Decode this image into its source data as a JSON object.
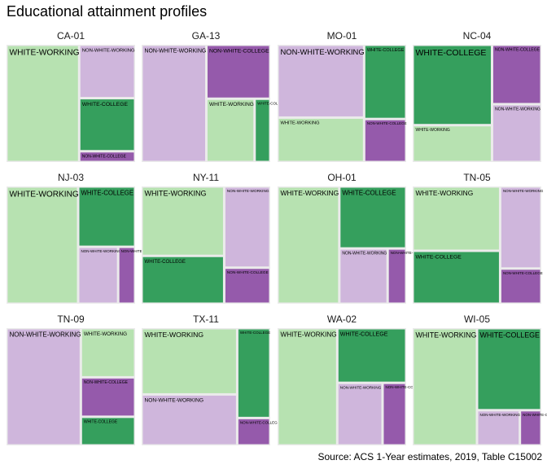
{
  "title": "Educational attainment profiles",
  "caption": "Source: ACS 1-Year estimates, 2019, Table C15002",
  "colors": {
    "WHITE-WORKING": "#b7e2b1",
    "NON-WHITE-WORKING": "#cfb6dc",
    "WHITE-COLLEGE": "#359f5d",
    "NON-WHITE-COLLEGE": "#955aab"
  },
  "chart_data": {
    "type": "treemap",
    "facets": [
      {
        "name": "CA-01",
        "cells": [
          {
            "category": "WHITE-WORKING",
            "label": "WHITE-WORKING",
            "share": 0.565
          },
          {
            "category": "NON-WHITE-WORKING",
            "label": "NON-WHITE-WORKING",
            "share": 0.198
          },
          {
            "category": "WHITE-COLLEGE",
            "label": "WHITE-COLLEGE",
            "share": 0.197
          },
          {
            "category": "NON-WHITE-COLLEGE",
            "label": "NON-WHITE-COLLEGE",
            "share": 0.04
          }
        ]
      },
      {
        "name": "GA-13",
        "cells": [
          {
            "category": "NON-WHITE-WORKING",
            "label": "NON-WHITE-WORKING",
            "share": 0.482
          },
          {
            "category": "NON-WHITE-COLLEGE",
            "label": "NON-WHITE-COLLEGE",
            "share": 0.219
          },
          {
            "category": "WHITE-WORKING",
            "label": "WHITE-WORKING",
            "share": 0.194
          },
          {
            "category": "WHITE-COLLEGE",
            "label": "WHITE-COLLEGE",
            "share": 0.063
          }
        ]
      },
      {
        "name": "MO-01",
        "cells": [
          {
            "category": "NON-WHITE-WORKING",
            "label": "NON-WHITE-WORKING",
            "share": 0.418
          },
          {
            "category": "WHITE-WORKING",
            "label": "WHITE-WORKING",
            "share": 0.255
          },
          {
            "category": "WHITE-COLLEGE",
            "label": "WHITE-COLLEGE",
            "share": 0.207
          },
          {
            "category": "NON-WHITE-COLLEGE",
            "label": "NON-WHITE-COLLEGE",
            "share": 0.12
          }
        ]
      },
      {
        "name": "NC-04",
        "cells": [
          {
            "category": "WHITE-COLLEGE",
            "label": "WHITE-COLLEGE",
            "share": 0.423
          },
          {
            "category": "NON-WHITE-WORKING",
            "label": "NON-WHITE-WORKING",
            "share": 0.189
          },
          {
            "category": "WHITE-WORKING",
            "label": "WHITE-WORKING",
            "share": 0.194
          },
          {
            "category": "NON-WHITE-COLLEGE",
            "label": "NON-WHITE-COLLEGE",
            "share": 0.194
          }
        ]
      },
      {
        "name": "NJ-03",
        "cells": [
          {
            "category": "WHITE-WORKING",
            "label": "WHITE-WORKING",
            "share": 0.557
          },
          {
            "category": "WHITE-COLLEGE",
            "label": "WHITE-COLLEGE",
            "share": 0.228
          },
          {
            "category": "NON-WHITE-WORKING",
            "label": "NON-WHITE-WORKING",
            "share": 0.151
          },
          {
            "category": "NON-WHITE-COLLEGE",
            "label": "NON-WHITE-COLLEGE",
            "share": 0.064
          }
        ]
      },
      {
        "name": "NY-11",
        "cells": [
          {
            "category": "WHITE-WORKING",
            "label": "WHITE-WORKING",
            "share": 0.38
          },
          {
            "category": "NON-WHITE-WORKING",
            "label": "NON-WHITE-WORKING",
            "share": 0.248
          },
          {
            "category": "WHITE-COLLEGE",
            "label": "WHITE-COLLEGE",
            "share": 0.262
          },
          {
            "category": "NON-WHITE-COLLEGE",
            "label": "NON-WHITE-COLLEGE",
            "share": 0.11
          }
        ]
      },
      {
        "name": "OH-01",
        "cells": [
          {
            "category": "WHITE-WORKING",
            "label": "WHITE-WORKING",
            "share": 0.48
          },
          {
            "category": "WHITE-COLLEGE",
            "label": "WHITE-COLLEGE",
            "share": 0.275
          },
          {
            "category": "NON-WHITE-WORKING",
            "label": "NON-WHITE-WORKING",
            "share": 0.177
          },
          {
            "category": "NON-WHITE-COLLEGE",
            "label": "NON-WHITE-COLLEGE",
            "share": 0.068
          }
        ]
      },
      {
        "name": "TN-05",
        "cells": [
          {
            "category": "WHITE-WORKING",
            "label": "WHITE-WORKING",
            "share": 0.373
          },
          {
            "category": "WHITE-COLLEGE",
            "label": "WHITE-COLLEGE",
            "share": 0.307
          },
          {
            "category": "NON-WHITE-WORKING",
            "label": "NON-WHITE-WORKING",
            "share": 0.224
          },
          {
            "category": "NON-WHITE-COLLEGE",
            "label": "NON-WHITE-COLLEGE",
            "share": 0.096
          }
        ]
      },
      {
        "name": "TN-09",
        "cells": [
          {
            "category": "NON-WHITE-WORKING",
            "label": "NON-WHITE-WORKING",
            "share": 0.578
          },
          {
            "category": "WHITE-WORKING",
            "label": "WHITE-WORKING",
            "share": 0.177
          },
          {
            "category": "NON-WHITE-COLLEGE",
            "label": "NON-WHITE-COLLEGE",
            "share": 0.142
          },
          {
            "category": "WHITE-COLLEGE",
            "label": "WHITE-COLLEGE",
            "share": 0.103
          }
        ]
      },
      {
        "name": "TX-11",
        "cells": [
          {
            "category": "WHITE-WORKING",
            "label": "WHITE-WORKING",
            "share": 0.42
          },
          {
            "category": "NON-WHITE-WORKING",
            "label": "NON-WHITE-WORKING",
            "share": 0.323
          },
          {
            "category": "WHITE-COLLEGE",
            "label": "WHITE-COLLEGE",
            "share": 0.197
          },
          {
            "category": "NON-WHITE-COLLEGE",
            "label": "NON-WHITE-COLLEGE",
            "share": 0.06
          }
        ]
      },
      {
        "name": "WA-02",
        "cells": [
          {
            "category": "WHITE-WORKING",
            "label": "WHITE-WORKING",
            "share": 0.464
          },
          {
            "category": "WHITE-COLLEGE",
            "label": "WHITE-COLLEGE",
            "share": 0.25
          },
          {
            "category": "NON-WHITE-WORKING",
            "label": "NON-WHITE-WORKING",
            "share": 0.188
          },
          {
            "category": "NON-WHITE-COLLEGE",
            "label": "NON-WHITE-COLLEGE",
            "share": 0.098
          }
        ]
      },
      {
        "name": "WI-05",
        "cells": [
          {
            "category": "WHITE-WORKING",
            "label": "WHITE-WORKING",
            "share": 0.5
          },
          {
            "category": "WHITE-COLLEGE",
            "label": "WHITE-COLLEGE",
            "share": 0.35
          },
          {
            "category": "NON-WHITE-WORKING",
            "label": "NON-WHITE-WORKING",
            "share": 0.1
          },
          {
            "category": "NON-WHITE-COLLEGE",
            "label": "NON-WHITE-COLLEGE",
            "share": 0.05
          }
        ]
      }
    ]
  }
}
